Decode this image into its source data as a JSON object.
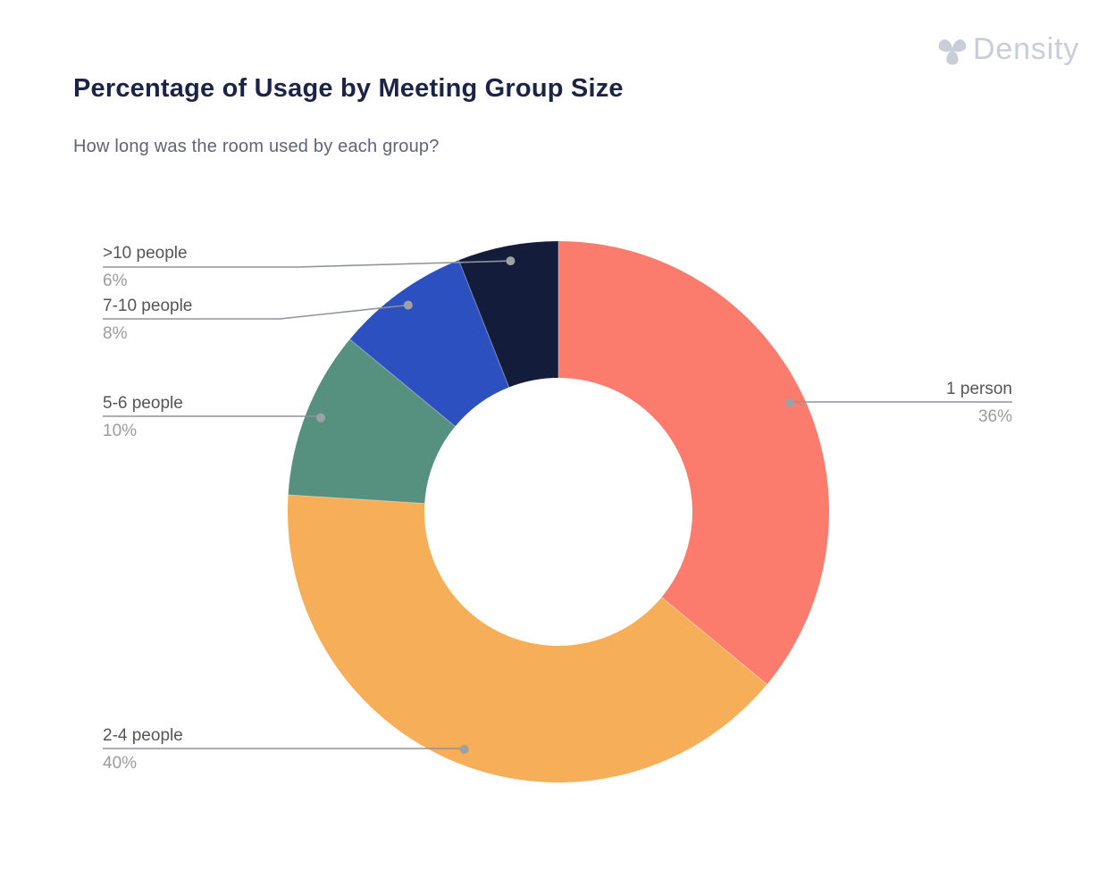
{
  "logo": {
    "text": "Density",
    "color": "#c8cdd8"
  },
  "header": {
    "title": "Percentage of Usage by Meeting Group Size",
    "subtitle": "How long was the room used by each group?"
  },
  "chart_data": {
    "type": "pie",
    "variant": "donut",
    "title": "Percentage of Usage by Meeting Group Size",
    "subtitle": "How long was the room used by each group?",
    "unit": "percent",
    "direction": "clockwise",
    "start_angle_deg": 0,
    "legend_position": "callout-labels",
    "slices": [
      {
        "label": "1 person",
        "value": 36,
        "display": "36%",
        "color": "#FB7B6C"
      },
      {
        "label": "2-4 people",
        "value": 40,
        "display": "40%",
        "color": "#F6AF58"
      },
      {
        "label": "5-6 people",
        "value": 10,
        "display": "10%",
        "color": "#56907F"
      },
      {
        "label": "7-10 people",
        "value": 8,
        "display": "8%",
        "color": "#2D50C0"
      },
      {
        "label": ">10 people",
        "value": 6,
        "display": "6%",
        "color": "#141C3C"
      }
    ],
    "style_colors": {
      "label_text": "#555555",
      "value_text": "#9b9b9b",
      "leader_line": "#8f9398",
      "leader_dot": "#9da1a6"
    }
  }
}
